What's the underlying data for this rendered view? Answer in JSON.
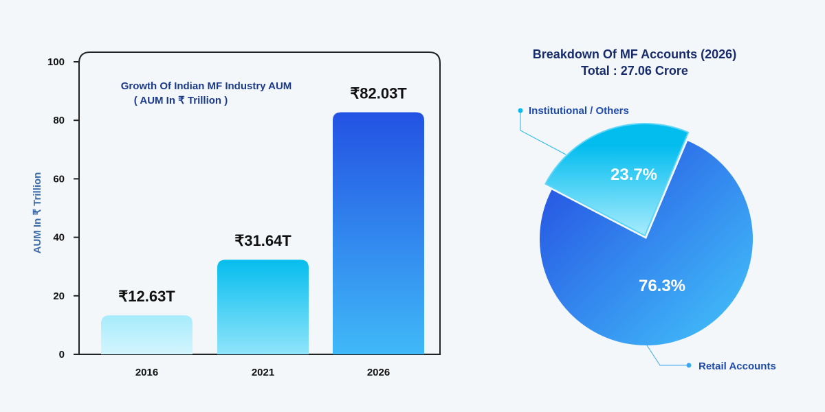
{
  "chart_data": [
    {
      "type": "bar",
      "title": "Growth Of Indian MF Industry AUM",
      "subtitle": "( AUM In ₹ Trillion )",
      "xlabel": "",
      "ylabel": "AUM In ₹ Trillion",
      "categories": [
        "2016",
        "2021",
        "2026"
      ],
      "values": [
        12.63,
        31.64,
        82.03
      ],
      "data_labels": [
        "₹12.63T",
        "₹31.64T",
        "₹82.03T"
      ],
      "ylim": [
        0,
        100
      ],
      "yticks": [
        "0",
        "20",
        "40",
        "60",
        "80",
        "100"
      ],
      "grid": false,
      "colors": {
        "2016": [
          "#a6ebfc",
          "#d3f5fd"
        ],
        "2021": [
          "#06bdee",
          "#8fe4fb"
        ],
        "2026": [
          "#2352e3",
          "#40b9f8"
        ]
      }
    },
    {
      "type": "pie",
      "title": "Breakdown Of MF Accounts (2026)",
      "subtitle": "Total : 27.06 Crore",
      "slices": [
        {
          "label": "Institutional / Others",
          "value": 23.7,
          "text": "23.7%",
          "exploded": true,
          "color": "#08bff0"
        },
        {
          "label": "Retail Accounts",
          "value": 76.3,
          "text": "76.3%",
          "exploded": false,
          "color": "#2f7ee9"
        }
      ],
      "legend": "callout labels"
    }
  ]
}
